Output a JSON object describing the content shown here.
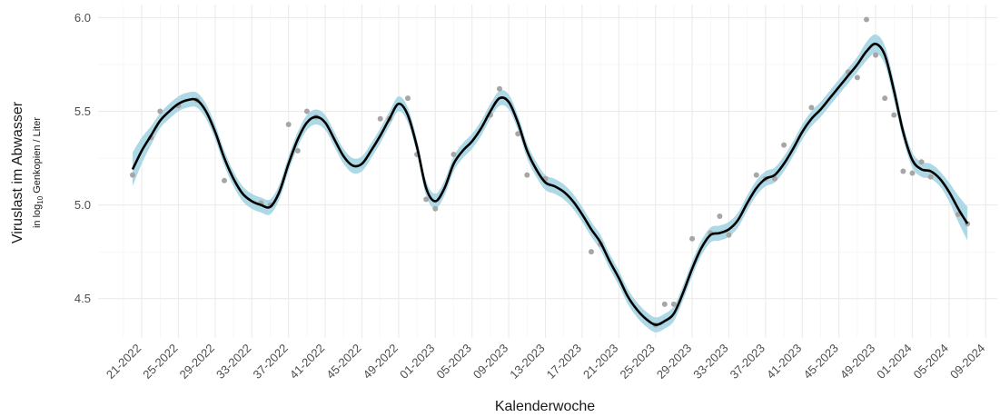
{
  "chart_data": {
    "type": "line",
    "x_label": "Kalenderwoche",
    "y_label": "Viruslast im Abwasser",
    "y_sublabel_parts": [
      "in log",
      "10",
      " Genkopien / Liter"
    ],
    "categories": [
      null,
      "21-2022",
      null,
      null,
      null,
      "25-2022",
      null,
      null,
      null,
      "29-2022",
      null,
      null,
      null,
      "33-2022",
      null,
      null,
      null,
      "37-2022",
      null,
      null,
      null,
      "41-2022",
      null,
      null,
      null,
      "45-2022",
      null,
      null,
      null,
      "49-2022",
      null,
      null,
      null,
      "01-2023",
      null,
      null,
      null,
      "05-2023",
      null,
      null,
      null,
      "09-2023",
      null,
      null,
      null,
      "13-2023",
      null,
      null,
      null,
      "17-2023",
      null,
      null,
      null,
      "21-2023",
      null,
      null,
      null,
      "25-2023",
      null,
      null,
      null,
      "29-2023",
      null,
      null,
      null,
      "33-2023",
      null,
      null,
      null,
      "37-2023",
      null,
      null,
      null,
      "41-2023",
      null,
      null,
      null,
      "45-2023",
      null,
      null,
      null,
      "49-2023",
      null,
      null,
      null,
      "01-2024",
      null,
      null,
      null,
      "05-2024",
      null,
      null,
      null,
      "09-2024"
    ],
    "ylim": [
      4.29,
      6.07
    ],
    "yticks": [
      4.5,
      {
        "value": 5,
        "label": "5.0"
      },
      5.5,
      {
        "value": 6,
        "label": "6.0"
      }
    ],
    "grid": true,
    "series": [
      {
        "mark": "points",
        "color": "#a6a6a6",
        "values": [
          5.16,
          null,
          5.36,
          5.5,
          null,
          5.53,
          null,
          5.56,
          null,
          null,
          5.13,
          null,
          null,
          null,
          5.01,
          5.0,
          null,
          5.43,
          5.29,
          5.5,
          5.47,
          null,
          null,
          null,
          null,
          null,
          null,
          5.46,
          5.46,
          null,
          5.57,
          5.27,
          5.03,
          4.98,
          null,
          5.27,
          null,
          null,
          null,
          5.48,
          5.62,
          null,
          5.38,
          5.16,
          null,
          5.14,
          null,
          null,
          null,
          null,
          4.75,
          4.79,
          null,
          null,
          null,
          null,
          null,
          4.36,
          4.47,
          4.47,
          null,
          4.82,
          null,
          4.85,
          4.94,
          4.84,
          null,
          null,
          5.16,
          5.14,
          5.14,
          5.32,
          null,
          null,
          5.52,
          null,
          null,
          null,
          5.71,
          5.68,
          5.99,
          5.8,
          5.57,
          5.48,
          5.18,
          5.17,
          5.23,
          5.15,
          null,
          null,
          4.95,
          4.9,
          null,
          null
        ]
      },
      {
        "mark": "line",
        "color": "#000000",
        "band_color": "#add8e6",
        "values": [
          5.19,
          5.29,
          5.37,
          5.45,
          5.5,
          5.54,
          5.56,
          5.56,
          5.5,
          5.39,
          5.25,
          5.14,
          5.06,
          5.02,
          5.0,
          4.99,
          5.07,
          5.22,
          5.35,
          5.44,
          5.47,
          5.44,
          5.35,
          5.26,
          5.21,
          5.22,
          5.29,
          5.37,
          5.46,
          5.54,
          5.48,
          5.31,
          5.09,
          5.02,
          5.09,
          5.22,
          5.29,
          5.34,
          5.41,
          5.5,
          5.57,
          5.55,
          5.44,
          5.29,
          5.19,
          5.12,
          5.1,
          5.07,
          5.02,
          4.95,
          4.87,
          4.8,
          4.7,
          4.61,
          4.51,
          4.44,
          4.39,
          4.36,
          4.38,
          4.42,
          4.53,
          4.66,
          4.77,
          4.84,
          4.85,
          4.87,
          4.92,
          5.01,
          5.09,
          5.14,
          5.16,
          5.22,
          5.3,
          5.39,
          5.46,
          5.51,
          5.57,
          5.63,
          5.69,
          5.75,
          5.82,
          5.86,
          5.8,
          5.61,
          5.39,
          5.24,
          5.19,
          5.18,
          5.14,
          5.07,
          4.98,
          4.9,
          null,
          null
        ],
        "errors": [
          0.09,
          0.07,
          0.05,
          0.04,
          0.04,
          0.04,
          0.04,
          0.04,
          0.04,
          0.04,
          0.04,
          0.04,
          0.04,
          0.04,
          0.04,
          0.04,
          0.04,
          0.04,
          0.04,
          0.04,
          0.04,
          0.04,
          0.04,
          0.04,
          0.04,
          0.04,
          0.04,
          0.04,
          0.04,
          0.04,
          0.04,
          0.04,
          0.04,
          0.04,
          0.04,
          0.04,
          0.04,
          0.04,
          0.04,
          0.04,
          0.04,
          0.04,
          0.04,
          0.04,
          0.04,
          0.04,
          0.04,
          0.04,
          0.04,
          0.04,
          0.04,
          0.04,
          0.04,
          0.04,
          0.04,
          0.04,
          0.04,
          0.04,
          0.04,
          0.04,
          0.04,
          0.04,
          0.04,
          0.04,
          0.04,
          0.04,
          0.04,
          0.04,
          0.04,
          0.04,
          0.04,
          0.04,
          0.04,
          0.04,
          0.04,
          0.04,
          0.04,
          0.04,
          0.04,
          0.04,
          0.05,
          0.05,
          0.05,
          0.05,
          0.04,
          0.04,
          0.04,
          0.04,
          0.04,
          0.05,
          0.07,
          0.09,
          null,
          null
        ]
      }
    ]
  }
}
